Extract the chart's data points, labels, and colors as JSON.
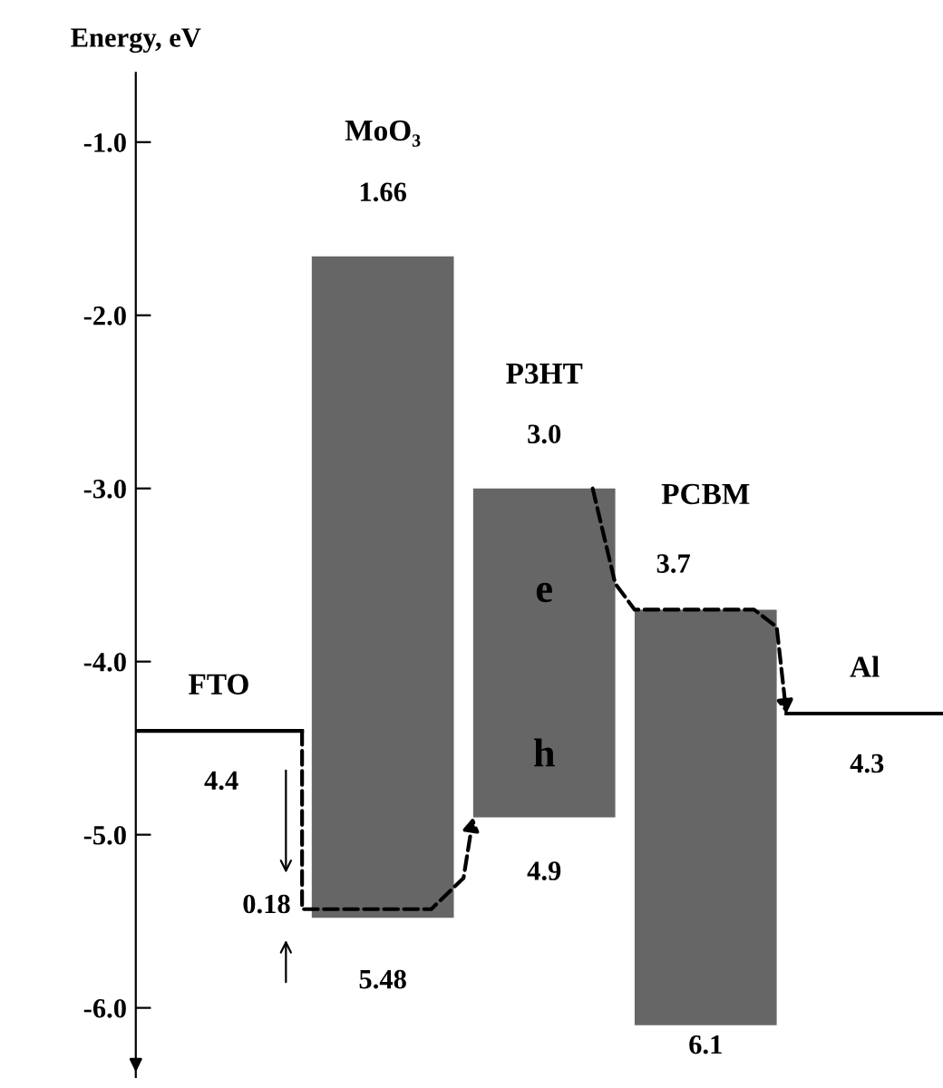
{
  "chart_data": {
    "type": "bar",
    "ylabel": "Energy, eV",
    "categories": [
      null,
      null,
      null
    ],
    "series": [
      {
        "color": "#666666",
        "base": [
          -5.48,
          -4.9,
          -6.1
        ],
        "values": [
          3.82,
          1.9,
          2.4
        ]
      }
    ],
    "ref_lines": [
      {
        "axis": "y",
        "value": -4.4,
        "label": "FTO",
        "color": "#000000"
      },
      {
        "axis": "y",
        "value": -4.3,
        "label": "Al",
        "color": "#000000"
      }
    ],
    "ylim": [
      -6.4,
      -0.6
    ],
    "yticks": [
      {
        "value": -1.0,
        "label": "-1.0"
      },
      {
        "value": -2.0,
        "label": "-2.0"
      },
      {
        "value": -3.0,
        "label": "-3.0"
      },
      {
        "value": -4.0,
        "label": "-4.0"
      },
      {
        "value": -5.0,
        "label": "-5.0"
      },
      {
        "value": -6.0,
        "label": "-6.0"
      }
    ],
    "tick_labels": "y",
    "grid": false,
    "annotations": [
      "MoO₃",
      "1.66",
      "5.48",
      "P3HT",
      "3.0",
      "4.9",
      "e",
      "h",
      "PCBM",
      "3.7",
      "6.1",
      "4.4",
      "4.3",
      "0.18"
    ]
  }
}
